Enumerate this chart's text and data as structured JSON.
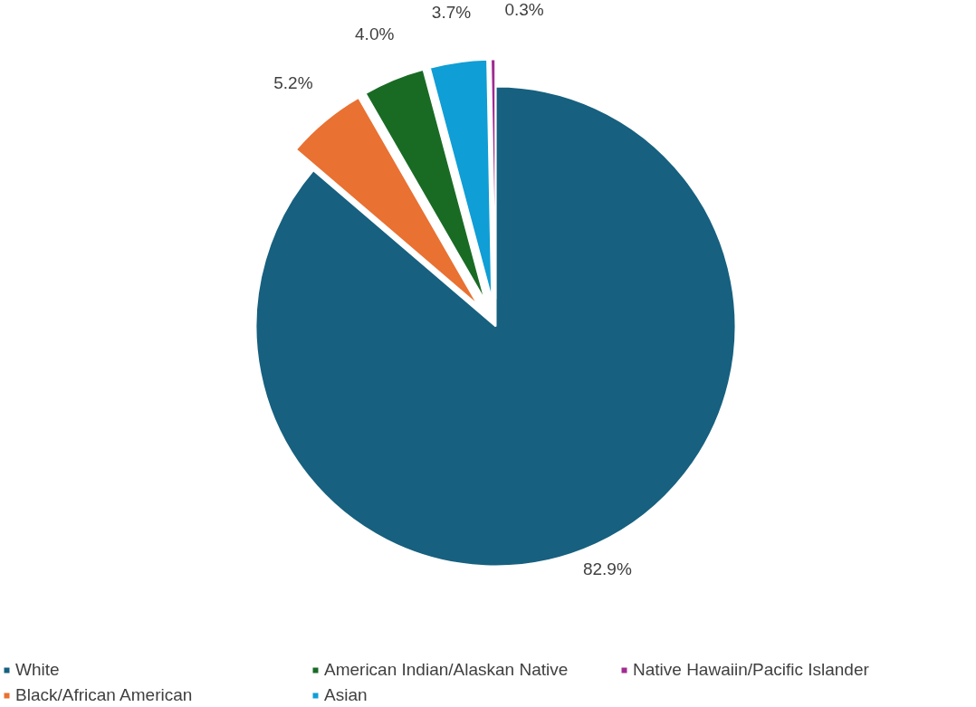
{
  "chart_data": {
    "type": "pie",
    "categories": [
      "White",
      "Black/African American",
      "American Indian/Alaskan Native",
      "Asian",
      "Native Hawaiin/Pacific Islander"
    ],
    "values": [
      82.9,
      5.2,
      4.0,
      3.7,
      0.3
    ],
    "colors": [
      "#17607f",
      "#e97132",
      "#196b24",
      "#0f9ed5",
      "#a02b93"
    ],
    "value_labels": [
      "82.9%",
      "5.2%",
      "4.0%",
      "3.7%",
      "0.3%"
    ],
    "legend": "bottom"
  }
}
